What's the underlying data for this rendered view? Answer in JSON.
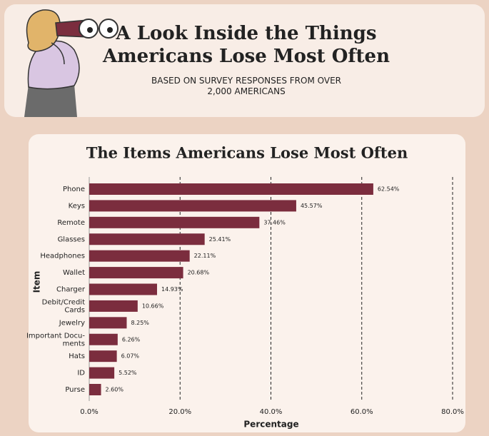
{
  "header": {
    "title": "A Look Inside the Things\nAmericans Lose Most Often",
    "subtitle": "BASED ON SURVEY RESPONSES FROM OVER\n2,000 AMERICANS"
  },
  "chart_data": {
    "type": "barh",
    "title": "The Items Americans Lose Most Often",
    "x_label": "Percentage",
    "y_label": "Item",
    "categories": [
      "Phone",
      "Keys",
      "Remote",
      "Glasses",
      "Headphones",
      "Wallet",
      "Charger",
      "Debit/Credit\nCards",
      "Jewelry",
      "Important Docu-\nments",
      "Hats",
      "ID",
      "Purse"
    ],
    "values": [
      62.54,
      45.57,
      37.46,
      25.41,
      22.11,
      20.68,
      14.93,
      10.66,
      8.25,
      6.26,
      6.07,
      5.52,
      2.6
    ],
    "value_labels": [
      "62.54%",
      "45.57%",
      "37.46%",
      "25.41%",
      "22.11%",
      "20.68%",
      "14.93%",
      "10.66%",
      "8.25%",
      "6.26%",
      "6.07%",
      "5.52%",
      "2.60%"
    ],
    "color": "#7b2d3e",
    "xlim": [
      0,
      80
    ],
    "xticks": [
      {
        "value": 0,
        "label": "0.0%"
      },
      {
        "value": 20,
        "label": "20.0%"
      },
      {
        "value": 40,
        "label": "40.0%"
      },
      {
        "value": 60,
        "label": "60.0%"
      },
      {
        "value": 80,
        "label": "80.0%"
      }
    ],
    "grid": true
  }
}
